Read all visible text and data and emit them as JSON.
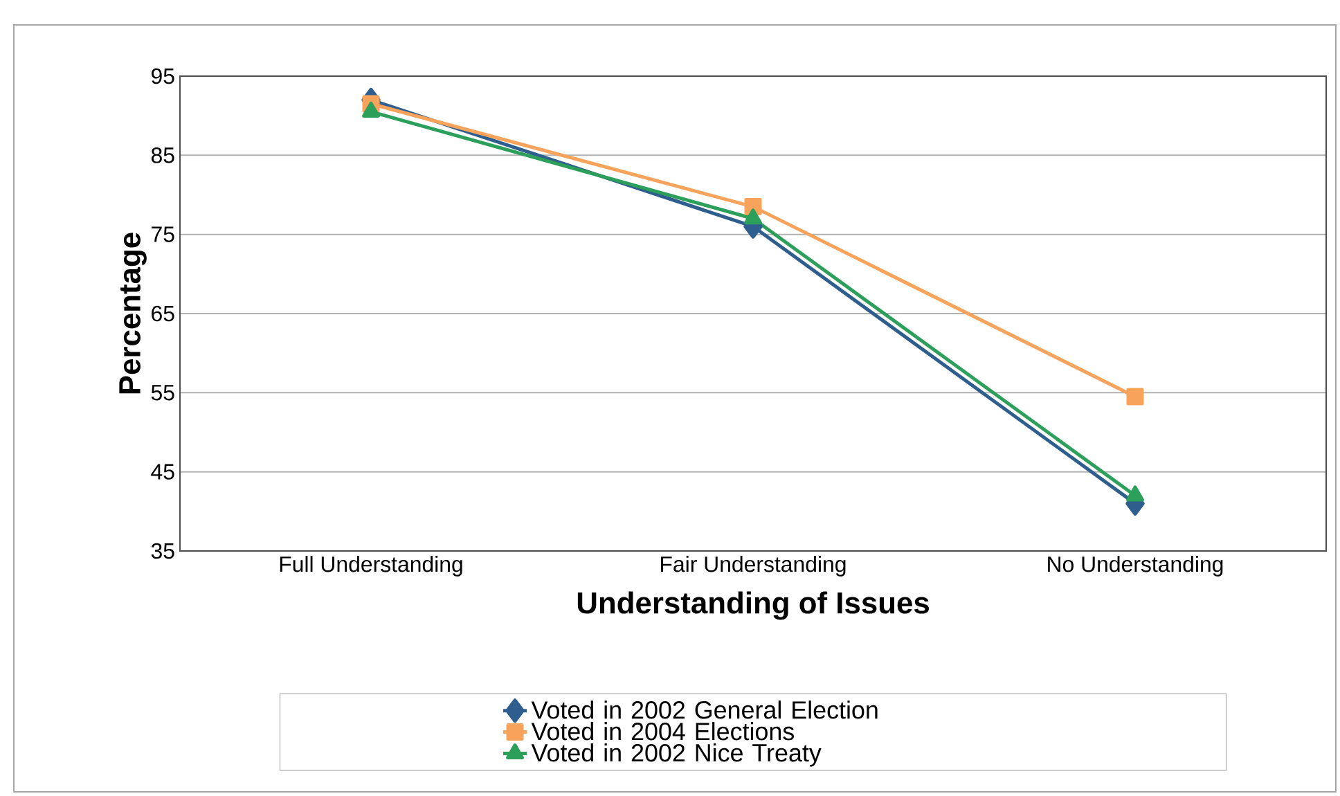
{
  "chart_data": {
    "type": "line",
    "xlabel": "Understanding of Issues",
    "ylabel": "Percentage",
    "categories": [
      "Full Understanding",
      "Fair Understanding",
      "No Understanding"
    ],
    "series": [
      {
        "name": "Voted in 2002 General Election",
        "color": "#2e5e8e",
        "marker": "diamond",
        "values": [
          92,
          76,
          41
        ]
      },
      {
        "name": "Voted in 2004 Elections",
        "color": "#f7a35c",
        "marker": "square",
        "values": [
          91.5,
          78.5,
          54.5
        ]
      },
      {
        "name": "Voted in 2002 Nice Treaty",
        "color": "#2ca05a",
        "marker": "triangle",
        "values": [
          90.5,
          77,
          42
        ]
      }
    ],
    "ylim": [
      35,
      95
    ],
    "yticks": [
      35,
      45,
      55,
      65,
      75,
      85,
      95
    ],
    "grid": "y",
    "legend": "bottom"
  }
}
